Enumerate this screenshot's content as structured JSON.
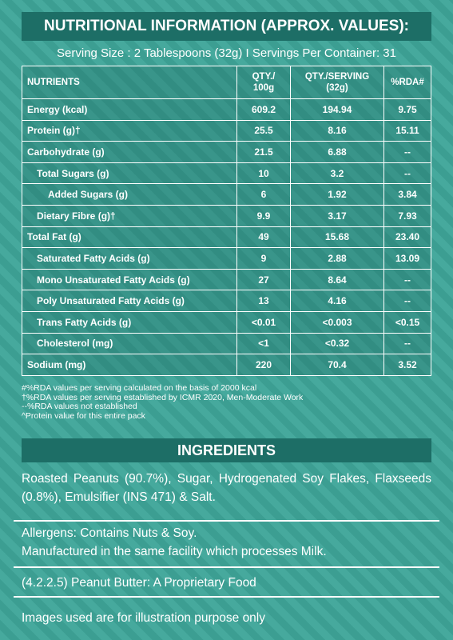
{
  "title": "NUTRITIONAL INFORMATION (APPROX. VALUES):",
  "serving": "Serving Size : 2 Tablespoons (32g) I Servings Per Container: 31",
  "table": {
    "header": [
      "NUTRIENTS",
      "QTY./\n100g",
      "QTY./SERVING\n(32g)",
      "%RDA#"
    ],
    "rows": [
      [
        "Energy (kcal)",
        "609.2",
        "194.94",
        "9.75"
      ],
      [
        "Protein (g)†",
        "25.5",
        "8.16",
        "15.11"
      ],
      [
        "Carbohydrate (g)",
        "21.5",
        "6.88",
        "--"
      ],
      [
        "Total Sugars (g)",
        "10",
        "3.2",
        "--"
      ],
      [
        "Added Sugars (g)",
        "6",
        "1.92",
        "3.84"
      ],
      [
        "Dietary Fibre (g)†",
        "9.9",
        "3.17",
        "7.93"
      ],
      [
        "Total Fat (g)",
        "49",
        "15.68",
        "23.40"
      ],
      [
        "Saturated Fatty Acids (g)",
        "9",
        "2.88",
        "13.09"
      ],
      [
        "Mono Unsaturated Fatty Acids (g)",
        "27",
        "8.64",
        "--"
      ],
      [
        "Poly Unsaturated Fatty Acids (g)",
        "13",
        "4.16",
        "--"
      ],
      [
        "Trans Fatty Acids (g)",
        "<0.01",
        "<0.003",
        "<0.15"
      ],
      [
        "Cholesterol (mg)",
        "<1",
        "<0.32",
        "--"
      ],
      [
        "Sodium (mg)",
        "220",
        "70.4",
        "3.52"
      ]
    ]
  },
  "footnotes": [
    "#%RDA values per serving calculated on the basis of 2000 kcal",
    "†%RDA values per serving established by ICMR 2020, Men-Moderate Work",
    "--%RDA values not established",
    "^Protein value for this entire pack"
  ],
  "ingredients": {
    "title": "INGREDIENTS",
    "text": "Roasted Peanuts (90.7%), Sugar, Hydrogenated Soy Flakes, Flaxseeds (0.8%), Emulsifier (INS 471) & Salt."
  },
  "allergens": [
    "Allergens: Contains Nuts & Soy.",
    "Manufactured in the same facility which processes Milk."
  ],
  "classification": "(4.2.2.5) Peanut Butter: A Proprietary Food",
  "disclaimer": "Images used are for illustration purpose only"
}
